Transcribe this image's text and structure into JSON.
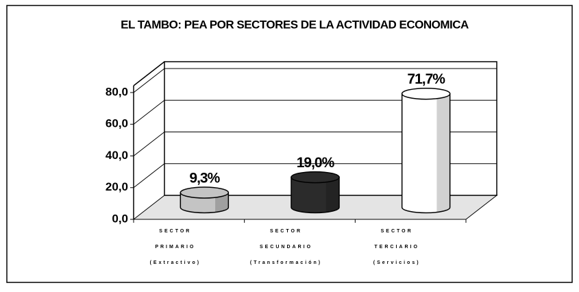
{
  "chart_data": {
    "type": "bar3d",
    "title": "EL TAMBO: PEA POR SECTORES DE LA ACTIVIDAD ECONOMICA",
    "categories": [
      [
        "SECTOR",
        "PRIMARIO",
        "(Extractivo)"
      ],
      [
        "SECTOR",
        "SECUNDARIO",
        "(Transformación)"
      ],
      [
        "SECTOR",
        "TERCIARIO",
        "(Servicios)"
      ]
    ],
    "values": [
      9.3,
      19.0,
      71.7
    ],
    "value_labels": [
      "9,3%",
      "19,0%",
      "71,7%"
    ],
    "colors": [
      "#c4c4c4",
      "#2b2b2b",
      "#ffffff"
    ],
    "ylim": [
      0,
      80
    ],
    "yticks": [
      {
        "value": 0,
        "label": "0,0"
      },
      {
        "value": 20,
        "label": "20,0"
      },
      {
        "value": 40,
        "label": "40,0"
      },
      {
        "value": 60,
        "label": "60,0"
      },
      {
        "value": 80,
        "label": "80,0"
      }
    ],
    "grid": true
  }
}
